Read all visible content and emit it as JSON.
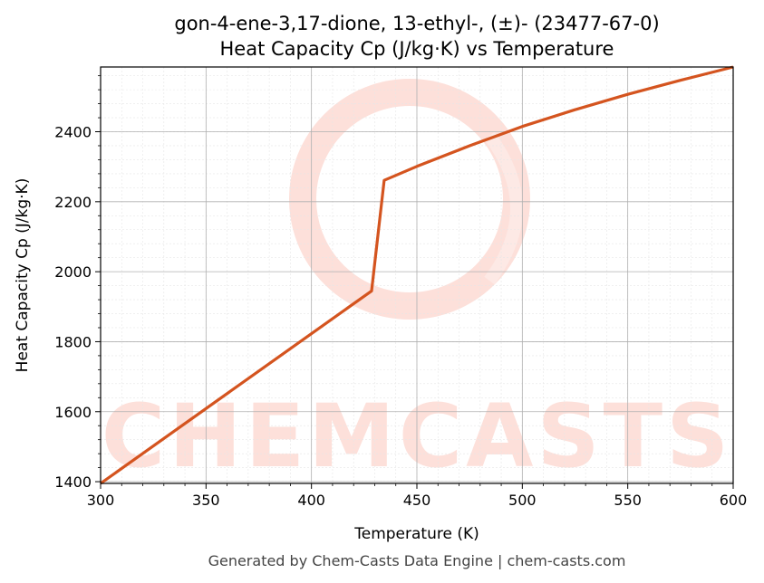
{
  "chart_data": {
    "type": "line",
    "title": "gon-4-ene-3,17-dione, 13-ethyl-, (±)- (23477-67-0)",
    "subtitle": "Heat Capacity Cp (J/kg·K) vs Temperature",
    "xlabel": "Temperature (K)",
    "ylabel": "Heat Capacity Cp (J/kg·K)",
    "xlim": [
      300,
      600
    ],
    "ylim": [
      1395,
      2585
    ],
    "x_ticks": [
      300,
      350,
      400,
      450,
      500,
      550,
      600
    ],
    "y_ticks": [
      1400,
      1600,
      1800,
      2000,
      2200,
      2400
    ],
    "grid": true,
    "series": [
      {
        "color": "#d4541f",
        "x": [
          300,
          428.5,
          434.5,
          450,
          475,
          500,
          525,
          550,
          575,
          600
        ],
        "y": [
          1395,
          1945,
          2261,
          2301,
          2360,
          2415,
          2463,
          2507,
          2547,
          2585
        ]
      }
    ]
  },
  "watermark": {
    "text": "CHEMCASTS",
    "color": "#fde0da"
  },
  "footer": "Generated by Chem-Casts Data Engine | chem-casts.com"
}
